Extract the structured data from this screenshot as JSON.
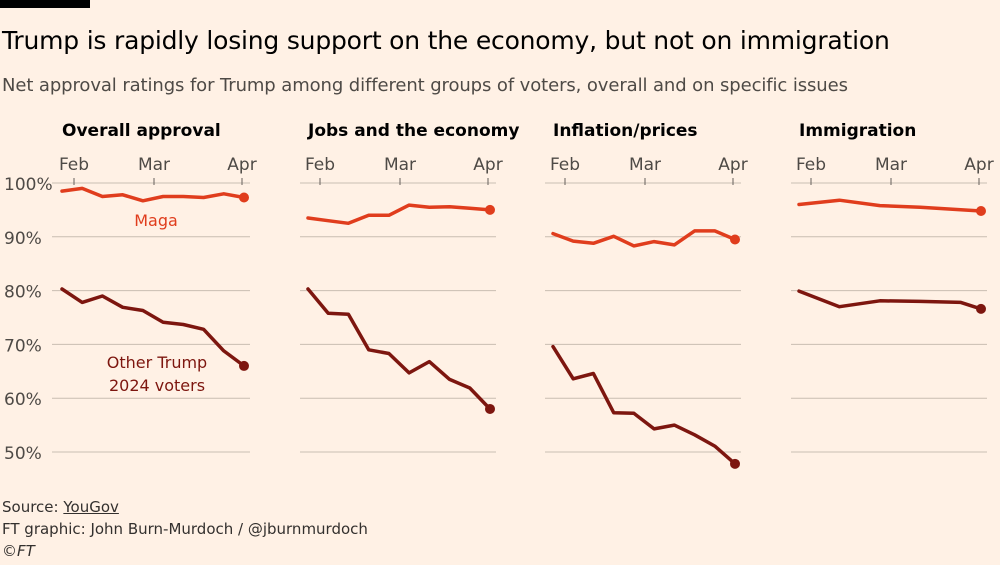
{
  "header": {
    "title": "Trump is rapidly losing support on the economy, but not on immigration",
    "subtitle": "Net approval ratings for Trump among different groups of voters, overall and on specific issues"
  },
  "footer": {
    "source_prefix": "Source: ",
    "source_link": "YouGov",
    "credit": "FT graphic: John Burn-Murdoch / @jburnmurdoch",
    "copyright": "©FT"
  },
  "chart_data": {
    "type": "line",
    "ylim": [
      45,
      101
    ],
    "yticks": [
      50,
      60,
      70,
      80,
      90,
      100
    ],
    "ytick_labels": [
      "50%",
      "60%",
      "70%",
      "80%",
      "90%",
      "100%"
    ],
    "xticks": [
      "Feb",
      "Mar",
      "Apr"
    ],
    "grid": true,
    "colors": {
      "maga": "#e03d1d",
      "other": "#7d160f",
      "grid": "#c9beb2",
      "background": "#fff1e5"
    },
    "labels": {
      "maga": "Maga",
      "other_line1": "Other Trump",
      "other_line2": "2024 voters"
    },
    "panels": [
      {
        "title": "Overall approval",
        "series": [
          {
            "key": "maga",
            "x": [
              "Feb 1",
              "Feb 8",
              "Feb 15",
              "Feb 22",
              "Mar 1",
              "Mar 8",
              "Mar 15",
              "Mar 22",
              "Mar 29",
              "Apr 5"
            ],
            "values": [
              98.5,
              99,
              97.5,
              97.8,
              96.7,
              97.5,
              97.5,
              97.3,
              98,
              97.3
            ]
          },
          {
            "key": "other",
            "x": [
              "Feb 1",
              "Feb 8",
              "Feb 15",
              "Feb 22",
              "Mar 1",
              "Mar 8",
              "Mar 15",
              "Mar 22",
              "Mar 29",
              "Apr 5"
            ],
            "values": [
              80.3,
              77.8,
              79,
              76.9,
              76.3,
              74.1,
              73.7,
              72.8,
              68.8,
              66
            ]
          }
        ]
      },
      {
        "title": "Jobs and the economy",
        "series": [
          {
            "key": "maga",
            "x": [
              "Feb 1",
              "Feb 8",
              "Feb 15",
              "Feb 22",
              "Mar 1",
              "Mar 8",
              "Mar 15",
              "Mar 22",
              "Mar 29",
              "Apr 5"
            ],
            "values": [
              93.5,
              93,
              92.5,
              94,
              94,
              95.9,
              95.5,
              95.6,
              95.3,
              95
            ]
          },
          {
            "key": "other",
            "x": [
              "Feb 1",
              "Feb 8",
              "Feb 15",
              "Feb 22",
              "Mar 1",
              "Mar 8",
              "Mar 15",
              "Mar 22",
              "Mar 29",
              "Apr 5"
            ],
            "values": [
              80.3,
              75.8,
              75.6,
              69,
              68.3,
              64.7,
              66.8,
              63.5,
              61.9,
              58
            ]
          }
        ]
      },
      {
        "title": "Inflation/prices",
        "series": [
          {
            "key": "maga",
            "x": [
              "Feb 1",
              "Feb 8",
              "Feb 15",
              "Feb 22",
              "Mar 1",
              "Mar 8",
              "Mar 15",
              "Mar 22",
              "Mar 29",
              "Apr 5"
            ],
            "values": [
              90.6,
              89.2,
              88.8,
              90.1,
              88.3,
              89.1,
              88.5,
              91.1,
              91.1,
              89.5
            ]
          },
          {
            "key": "other",
            "x": [
              "Feb 1",
              "Feb 8",
              "Feb 15",
              "Feb 22",
              "Mar 1",
              "Mar 8",
              "Mar 15",
              "Mar 22",
              "Mar 29",
              "Apr 5"
            ],
            "values": [
              69.6,
              63.6,
              64.6,
              57.3,
              57.2,
              54.3,
              55,
              53.2,
              51.1,
              47.8
            ]
          }
        ]
      },
      {
        "title": "Immigration",
        "series": [
          {
            "key": "maga",
            "x": [
              "Feb 1",
              "Feb 8",
              "Feb 15",
              "Feb 22",
              "Mar 1",
              "Mar 8",
              "Mar 15",
              "Mar 22",
              "Mar 29",
              "Apr 5"
            ],
            "values": [
              96,
              null,
              96.8,
              null,
              95.8,
              null,
              95.5,
              null,
              null,
              94.8
            ]
          },
          {
            "key": "other",
            "x": [
              "Feb 1",
              "Feb 8",
              "Feb 15",
              "Feb 22",
              "Mar 1",
              "Mar 8",
              "Mar 15",
              "Mar 22",
              "Mar 29",
              "Apr 5"
            ],
            "values": [
              79.9,
              null,
              77,
              null,
              78.1,
              null,
              78,
              null,
              77.8,
              76.6
            ]
          }
        ]
      }
    ]
  }
}
